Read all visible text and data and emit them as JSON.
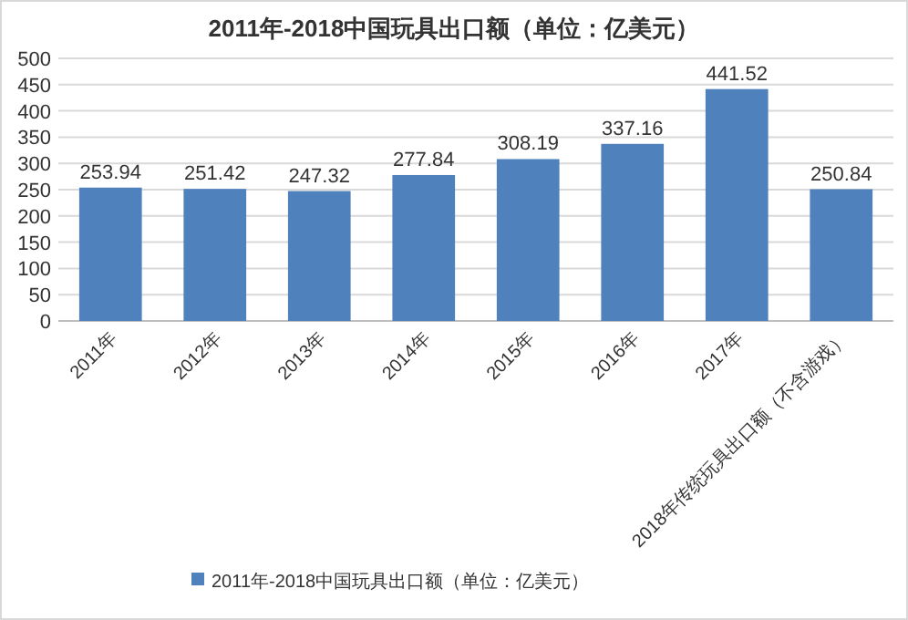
{
  "chart_data": {
    "type": "bar",
    "title": "2011年-2018中国玩具出口额（单位：亿美元）",
    "categories": [
      "2011年",
      "2012年",
      "2013年",
      "2014年",
      "2015年",
      "2016年",
      "2017年",
      "2018年传统玩具出口额（不含游戏）"
    ],
    "series": [
      {
        "name": "2011年-2018中国玩具出口额（单位：亿美元）",
        "color": "#4f81bd",
        "values": [
          253.94,
          251.42,
          247.32,
          277.84,
          308.19,
          337.16,
          441.52,
          250.84
        ]
      }
    ],
    "ylim": [
      0,
      500
    ],
    "yticks": [
      0,
      50,
      100,
      150,
      200,
      250,
      300,
      350,
      400,
      450,
      500
    ],
    "grid": "y",
    "legend": "bottom",
    "data_labels": true
  }
}
